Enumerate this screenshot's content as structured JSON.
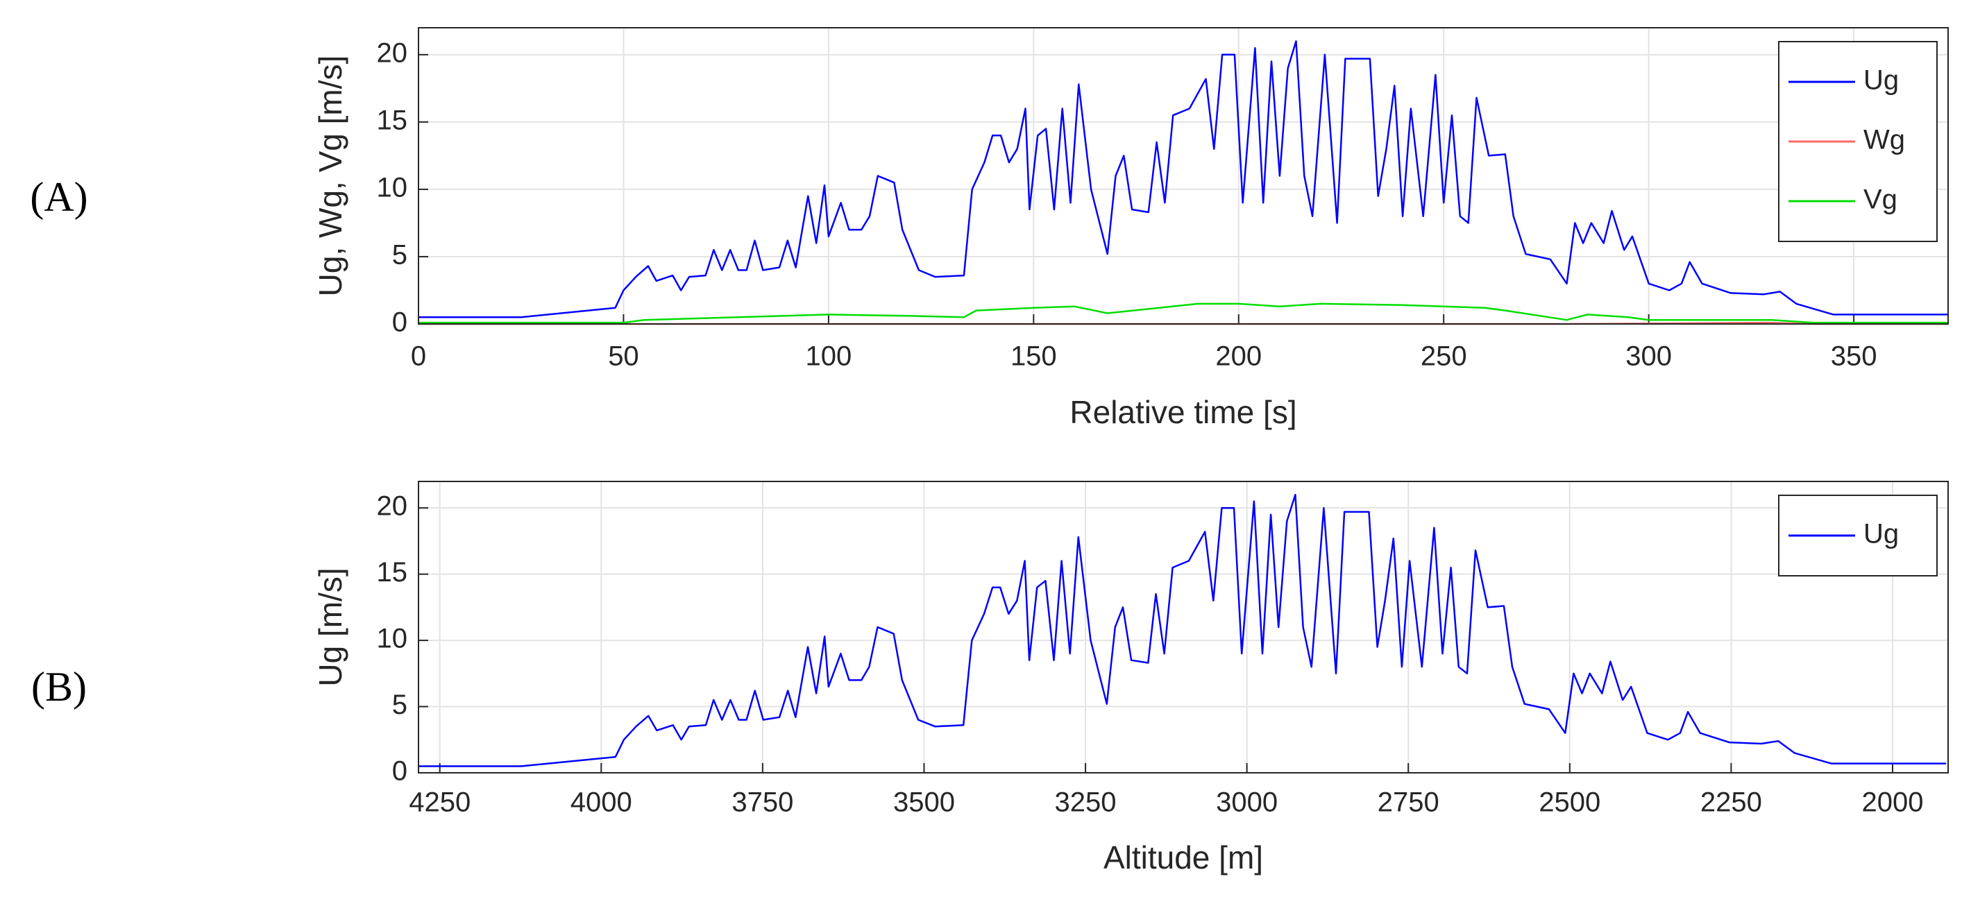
{
  "chart_data": [
    {
      "type": "line",
      "panel": "(A)",
      "xlabel": "Relative time [s]",
      "ylabel": "Ug, Wg, Vg [m/s]",
      "xlim": [
        0,
        373
      ],
      "ylim": [
        0,
        22
      ],
      "xticks": [
        0,
        50,
        100,
        150,
        200,
        250,
        300,
        350
      ],
      "yticks": [
        0,
        5,
        10,
        15,
        20
      ],
      "grid": true,
      "legend": "upper right",
      "series": [
        {
          "name": "Ug",
          "color": "#0000ff",
          "x": [
            0,
            25,
            48,
            50,
            53,
            56,
            58,
            62,
            64,
            66,
            70,
            72,
            74,
            76,
            78,
            80,
            82,
            84,
            88,
            90,
            92,
            95,
            97,
            99,
            100,
            103,
            105,
            108,
            110,
            112,
            116,
            118,
            122,
            126,
            133,
            135,
            138,
            140,
            142,
            144,
            146,
            148,
            149,
            151,
            153,
            155,
            157,
            159,
            161,
            164,
            168,
            170,
            172,
            174,
            178,
            180,
            182,
            184,
            188,
            192,
            194,
            196,
            199,
            201,
            204,
            206,
            208,
            210,
            212,
            214,
            216,
            218,
            221,
            224,
            226,
            232,
            234,
            236,
            238,
            240,
            242,
            245,
            248,
            250,
            252,
            254,
            256,
            258,
            261,
            265,
            267,
            270,
            276,
            280,
            282,
            284,
            286,
            289,
            291,
            294,
            296,
            300,
            305,
            308,
            310,
            313,
            320,
            328,
            332,
            336,
            345,
            373
          ],
          "values": [
            0.5,
            0.5,
            1.2,
            2.5,
            3.5,
            4.3,
            3.2,
            3.6,
            2.5,
            3.5,
            3.6,
            5.5,
            4,
            5.5,
            4,
            4,
            6.2,
            4,
            4.2,
            6.2,
            4.2,
            9.5,
            6,
            10.3,
            6.5,
            9,
            7,
            7,
            8,
            11,
            10.5,
            7,
            4,
            3.5,
            3.6,
            10,
            12,
            14,
            14,
            12,
            13,
            16,
            8.5,
            14,
            14.5,
            8.5,
            16,
            9,
            17.8,
            10,
            5.2,
            11,
            12.5,
            8.5,
            8.3,
            13.5,
            9,
            15.5,
            16,
            18.2,
            13,
            20,
            20,
            9,
            20.5,
            9,
            19.5,
            11,
            19,
            21,
            11,
            8,
            20,
            7.5,
            19.7,
            19.7,
            9.5,
            13,
            17.7,
            8,
            16,
            8,
            18.5,
            9,
            15.5,
            8,
            7.5,
            16.8,
            12.5,
            12.6,
            8,
            5.2,
            4.8,
            3,
            7.5,
            6,
            7.5,
            6,
            8.4,
            5.5,
            6.5,
            3,
            2.5,
            3,
            4.6,
            3,
            2.3,
            2.2,
            2.4,
            1.5,
            0.7,
            0.7
          ]
        },
        {
          "name": "Wg",
          "color": "#ff6666",
          "x": [
            0,
            280,
            330,
            340,
            373
          ],
          "values": [
            0,
            0,
            0.1,
            0,
            0
          ]
        },
        {
          "name": "Vg",
          "color": "#00dd00",
          "x": [
            0,
            50,
            55,
            100,
            120,
            133,
            136,
            150,
            160,
            168,
            190,
            200,
            210,
            220,
            240,
            260,
            265,
            280,
            285,
            295,
            300,
            330,
            340,
            373
          ],
          "values": [
            0.1,
            0.1,
            0.3,
            0.7,
            0.6,
            0.5,
            1,
            1.2,
            1.3,
            0.8,
            1.5,
            1.5,
            1.3,
            1.5,
            1.4,
            1.2,
            1,
            0.3,
            0.7,
            0.5,
            0.3,
            0.3,
            0.1,
            0.1
          ]
        }
      ]
    },
    {
      "type": "line",
      "panel": "(B)",
      "xlabel": "Altitude [m]",
      "ylabel": "Ug [m/s]",
      "xlim": [
        4283,
        1914
      ],
      "ylim": [
        0,
        22
      ],
      "xticks": [
        4250,
        4000,
        3750,
        3500,
        3250,
        3000,
        2750,
        2500,
        2250,
        2000
      ],
      "yticks": [
        0,
        5,
        10,
        15,
        20
      ],
      "grid": true,
      "legend": "upper right",
      "series": [
        {
          "name": "Ug",
          "color": "#0000ff",
          "x": [
            4282,
            4124,
            3978,
            3965,
            3946,
            3927,
            3914,
            3889,
            3876,
            3864,
            3838,
            3826,
            3813,
            3800,
            3787,
            3775,
            3762,
            3749,
            3724,
            3711,
            3699,
            3680,
            3667,
            3654,
            3648,
            3629,
            3616,
            3597,
            3585,
            3572,
            3547,
            3534,
            3509,
            3483,
            3439,
            3426,
            3407,
            3394,
            3382,
            3369,
            3356,
            3344,
            3337,
            3325,
            3312,
            3299,
            3287,
            3274,
            3261,
            3242,
            3217,
            3204,
            3192,
            3179,
            3153,
            3141,
            3128,
            3115,
            3090,
            3065,
            3052,
            3039,
            3020,
            3008,
            2989,
            2976,
            2963,
            2951,
            2938,
            2925,
            2913,
            2900,
            2881,
            2862,
            2849,
            2811,
            2798,
            2786,
            2773,
            2760,
            2748,
            2729,
            2710,
            2697,
            2684,
            2672,
            2659,
            2646,
            2627,
            2602,
            2589,
            2570,
            2532,
            2507,
            2494,
            2481,
            2469,
            2450,
            2437,
            2418,
            2405,
            2380,
            2348,
            2329,
            2317,
            2298,
            2253,
            2203,
            2177,
            2152,
            2095,
            1917
          ],
          "values": [
            0.5,
            0.5,
            1.2,
            2.5,
            3.5,
            4.3,
            3.2,
            3.6,
            2.5,
            3.5,
            3.6,
            5.5,
            4,
            5.5,
            4,
            4,
            6.2,
            4,
            4.2,
            6.2,
            4.2,
            9.5,
            6,
            10.3,
            6.5,
            9,
            7,
            7,
            8,
            11,
            10.5,
            7,
            4,
            3.5,
            3.6,
            10,
            12,
            14,
            14,
            12,
            13,
            16,
            8.5,
            14,
            14.5,
            8.5,
            16,
            9,
            17.8,
            10,
            5.2,
            11,
            12.5,
            8.5,
            8.3,
            13.5,
            9,
            15.5,
            16,
            18.2,
            13,
            20,
            20,
            9,
            20.5,
            9,
            19.5,
            11,
            19,
            21,
            11,
            8,
            20,
            7.5,
            19.7,
            19.7,
            9.5,
            13,
            17.7,
            8,
            16,
            8,
            18.5,
            9,
            15.5,
            8,
            7.5,
            16.8,
            12.5,
            12.6,
            8,
            5.2,
            4.8,
            3,
            7.5,
            6,
            7.5,
            6,
            8.4,
            5.5,
            6.5,
            3,
            2.5,
            3,
            4.6,
            3,
            2.3,
            2.2,
            2.4,
            1.5,
            0.7,
            0.7
          ]
        }
      ]
    }
  ]
}
